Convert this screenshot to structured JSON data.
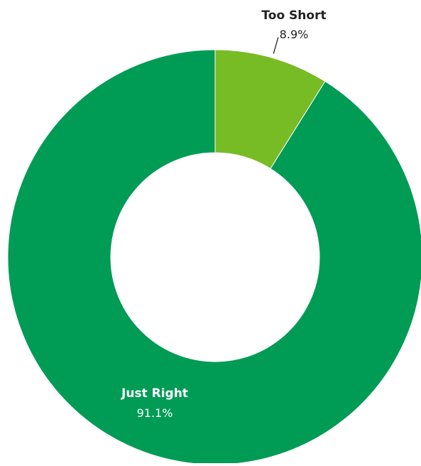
{
  "chart_data": {
    "type": "pie",
    "donut": true,
    "title": "",
    "categories": [
      "Too Short",
      "Just Right"
    ],
    "values": [
      8.9,
      91.1
    ],
    "value_labels": [
      "8.9%",
      "91.1%"
    ],
    "colors": [
      "#77bc25",
      "#009b55"
    ],
    "start_angle_deg": 0,
    "direction": "clockwise",
    "legend": "none",
    "label_colors": [
      "#222222",
      "#ffffff"
    ]
  }
}
